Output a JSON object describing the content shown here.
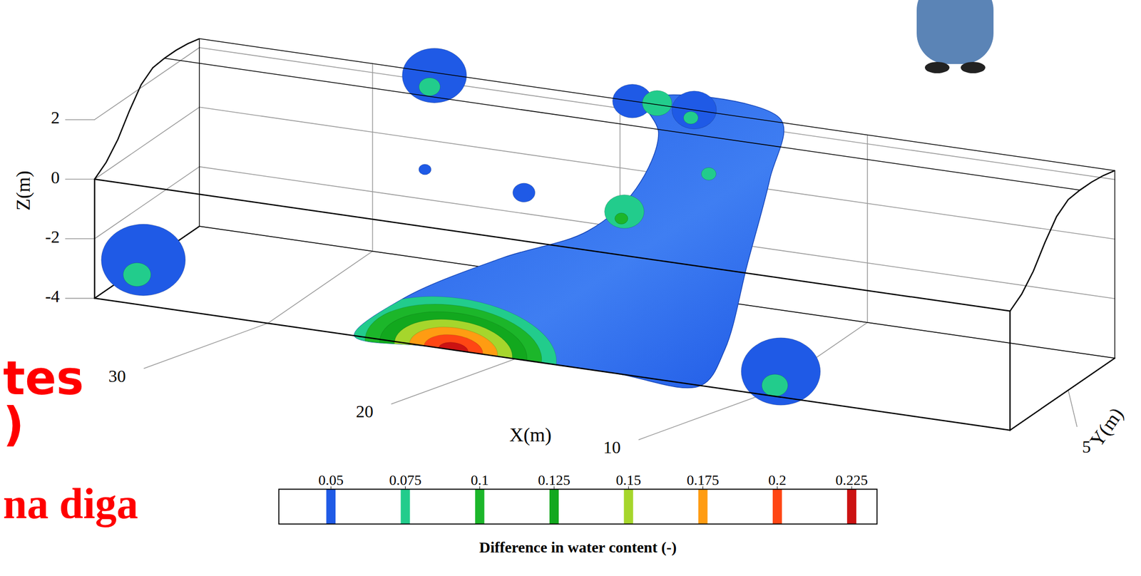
{
  "chart_data": {
    "type": "isosurface3d",
    "x_label": "X(m)",
    "y_label": "Y(m)",
    "z_label": "Z(m)",
    "xlim": [
      0,
      37
    ],
    "xticks": [
      10,
      20,
      30
    ],
    "ylim": [
      0,
      9
    ],
    "yticks": [
      5
    ],
    "zlim": [
      -4,
      2.5
    ],
    "zticks": [
      -4,
      -2,
      0,
      2
    ],
    "grid": true,
    "dam_profile": {
      "y": [
        0,
        1,
        2,
        3,
        4,
        5,
        6,
        7,
        8,
        9
      ],
      "z": [
        0,
        0.3,
        0.8,
        1.5,
        2.1,
        2.4,
        2.45,
        2.45,
        2.4,
        2.3
      ]
    },
    "main_body": {
      "level": 0.05,
      "points": [
        [
          26.5,
          0,
          -4
        ],
        [
          24.5,
          0,
          -2.5
        ],
        [
          21,
          1,
          -1
        ],
        [
          18,
          2,
          0
        ],
        [
          17,
          4,
          1
        ],
        [
          17.5,
          7,
          2
        ],
        [
          19,
          9,
          2.4
        ],
        [
          13.5,
          9,
          2.4
        ],
        [
          13,
          7,
          1
        ],
        [
          12.5,
          4,
          -1
        ],
        [
          12,
          1,
          -3
        ],
        [
          12.5,
          0,
          -4
        ],
        [
          16,
          0,
          -4
        ],
        [
          20,
          0,
          -4
        ],
        [
          23.5,
          0,
          -4
        ]
      ]
    },
    "hot_spot": {
      "x": 22.5,
      "y": 0,
      "z": -4,
      "levels": [
        0.075,
        0.1,
        0.125,
        0.15,
        0.175,
        0.2,
        0.225
      ],
      "radii": [
        4.2,
        3.6,
        3.0,
        2.4,
        1.8,
        1.2,
        0.6
      ]
    },
    "regions": [
      {
        "x": 35.5,
        "y": 1,
        "z": -2.8,
        "r": 1.7,
        "levels": [
          0.05,
          0.075
        ]
      },
      {
        "x": 9.5,
        "y": 0.5,
        "z": -3.3,
        "r": 1.6,
        "levels": [
          0.05,
          0.075
        ]
      },
      {
        "x": 27.5,
        "y": 9,
        "z": 2.2,
        "r": 1.3,
        "levels": [
          0.05,
          0.075
        ]
      },
      {
        "x": 19.5,
        "y": 9,
        "z": 2.3,
        "r": 0.8,
        "levels": [
          0.05
        ]
      },
      {
        "x": 17,
        "y": 9,
        "z": 2.3,
        "r": 0.9,
        "levels": [
          0.05,
          0.075
        ]
      },
      {
        "x": 26,
        "y": 5,
        "z": 0.3,
        "r": 0.25,
        "levels": [
          0.05
        ]
      },
      {
        "x": 22,
        "y": 5,
        "z": 0,
        "r": 0.45,
        "levels": [
          0.05
        ]
      },
      {
        "x": 17,
        "y": 3,
        "z": 0.5,
        "r": 0.8,
        "levels": [
          0.075,
          0.1
        ]
      },
      {
        "x": 18.5,
        "y": 9,
        "z": 2.35,
        "r": 0.6,
        "levels": [
          0.075
        ]
      },
      {
        "x": 15,
        "y": 6,
        "z": 1.2,
        "r": 0.3,
        "levels": [
          0.075
        ]
      }
    ],
    "colorbar": {
      "label": "Difference in water content (-)",
      "range": [
        0.0325,
        0.2335
      ],
      "ticks": [
        0.05,
        0.075,
        0.1,
        0.125,
        0.15,
        0.175,
        0.2,
        0.225
      ],
      "colors": [
        "#1f5ae6",
        "#22cc8c",
        "#1cb62a",
        "#12a81e",
        "#a6d62c",
        "#ff9c12",
        "#ff4614",
        "#cc1212"
      ]
    },
    "annotations": [
      "tes",
      ")",
      "na diga"
    ]
  }
}
